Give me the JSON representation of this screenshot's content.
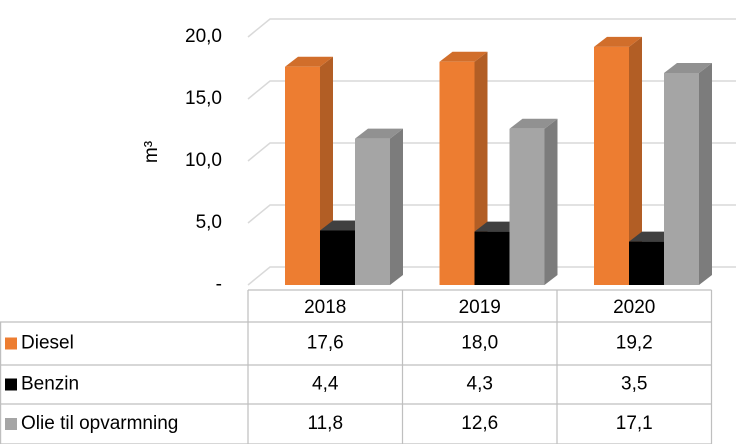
{
  "chart_data": {
    "type": "bar3d",
    "y_label": "m³",
    "categories": [
      "2018",
      "2019",
      "2020"
    ],
    "series": [
      {
        "name": "Diesel",
        "color": "#ed7d31",
        "values": [
          17.6,
          18.0,
          19.2
        ],
        "value_labels": [
          "17,6",
          "18,0",
          "19,2"
        ]
      },
      {
        "name": "Benzin",
        "color": "#000000",
        "values": [
          4.4,
          4.3,
          3.5
        ],
        "value_labels": [
          "4,4",
          "4,3",
          "3,5"
        ]
      },
      {
        "name": "Olie til opvarmning",
        "color": "#a5a5a5",
        "values": [
          11.8,
          12.6,
          17.1
        ],
        "value_labels": [
          "11,8",
          "12,6",
          "17,1"
        ]
      }
    ],
    "ylim": [
      0,
      20
    ],
    "yticks": [
      {
        "value": 0,
        "label": "-"
      },
      {
        "value": 5,
        "label": "5,0"
      },
      {
        "value": 10,
        "label": "10,0"
      },
      {
        "value": 15,
        "label": "15,0"
      },
      {
        "value": 20,
        "label": "20,0"
      }
    ],
    "grid": true
  }
}
